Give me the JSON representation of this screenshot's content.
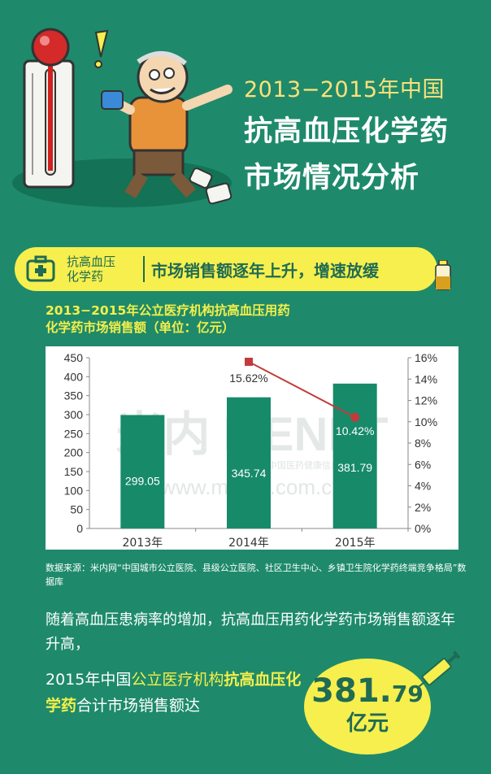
{
  "header": {
    "title_line1": "2013−2015年中国",
    "title_line2": "抗高血压化学药",
    "title_line3": "市场情况分析"
  },
  "banner": {
    "category_line1": "抗高血压",
    "category_line2": "化学药",
    "headline": "市场销售额逐年上升，增速放缓"
  },
  "chart_title": {
    "line1": "2013−2015年公立医疗机构抗高血压用药",
    "line2": "化学药市场销售额（单位：亿元）"
  },
  "chart_data": {
    "type": "bar",
    "categories": [
      "2013年",
      "2014年",
      "2015年"
    ],
    "series": [
      {
        "type": "bar",
        "values": [
          299.05,
          345.74,
          381.79
        ],
        "value_labels": [
          "299.05",
          "345.74",
          "381.79"
        ],
        "color": "#178a6a"
      },
      {
        "type": "line",
        "axis": "right",
        "values": [
          null,
          15.62,
          10.42
        ],
        "value_labels": [
          "",
          "15.62%",
          "10.42%"
        ],
        "color": "#c23b3b"
      }
    ],
    "y_left": {
      "ylim": [
        0,
        450
      ],
      "ticks": [
        "0",
        "50",
        "100",
        "150",
        "200",
        "250",
        "300",
        "350",
        "400",
        "450"
      ]
    },
    "y_right": {
      "ylim": [
        0,
        16
      ],
      "ticks": [
        "0%",
        "2%",
        "4%",
        "6%",
        "8%",
        "10%",
        "12%",
        "14%",
        "16%"
      ]
    },
    "grid": false,
    "watermark_lines": [
      "米内 MENET",
      "中国医药健康信息综合平台",
      "www.menet.com.cn"
    ]
  },
  "source": {
    "text": "数据来源：米内网“中国城市公立医院、县级公立医院、社区卫生中心、乡镇卫生院化学药终端竞争格局”数据库"
  },
  "body": {
    "para1": "随着高血压患病率的增加，抗高血压用药化学药市场销售额逐年升高，",
    "para2_a": "2015年中国",
    "para2_b": "公立医疗机构",
    "para2_c": "抗高血压化学药",
    "para2_d": "合计市场销售额达"
  },
  "badge": {
    "value_int": "381.",
    "value_dec": "79",
    "unit": "亿元"
  },
  "colors": {
    "background": "#1e8a6b",
    "accent_yellow": "#f6ef4e",
    "bar": "#178a6a",
    "growth_line": "#c23b3b"
  }
}
